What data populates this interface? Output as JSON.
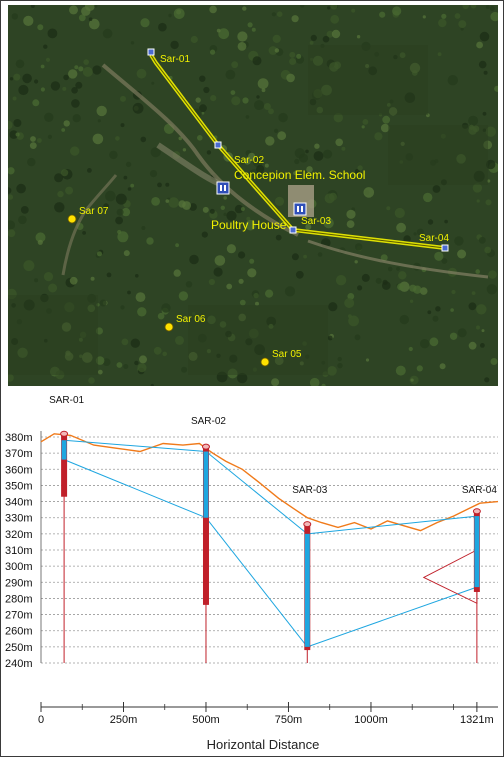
{
  "map": {
    "markers": [
      {
        "label": "Sar-01",
        "type": "route"
      },
      {
        "label": "Sar-02",
        "type": "route"
      },
      {
        "label": "Sar-03",
        "type": "route"
      },
      {
        "label": "Sar-04",
        "type": "route"
      },
      {
        "label": "Sar 07",
        "type": "point"
      },
      {
        "label": "Sar 06",
        "type": "point"
      },
      {
        "label": "Sar 05",
        "type": "point"
      }
    ],
    "places": [
      {
        "label": "Concepion Elem. School",
        "icon": "school-icon"
      },
      {
        "label": "Poultry House",
        "icon": "building-icon"
      }
    ],
    "colors": {
      "route": "#f2f200",
      "label": "#f2f200",
      "marker": "#ffe100"
    }
  },
  "profile": {
    "stations": [
      {
        "label": "SAR-01",
        "distance_m": 70,
        "top_m": 382,
        "red_bottom_m": 343,
        "blue_top_m": 378,
        "blue_bottom_m": 366
      },
      {
        "label": "SAR-02",
        "distance_m": 500,
        "top_m": 374,
        "red_bottom_m": 276,
        "blue_top_m": 371,
        "blue_bottom_m": 330
      },
      {
        "label": "SAR-03",
        "distance_m": 807,
        "top_m": 326,
        "red_bottom_m": 248,
        "blue_top_m": 320,
        "blue_bottom_m": 250
      },
      {
        "label": "SAR-04",
        "distance_m": 1321,
        "top_m": 334,
        "red_bottom_m": 284,
        "blue_top_m": 331,
        "blue_bottom_m": 287
      }
    ],
    "y_ticks": [
      "380m",
      "370m",
      "360m",
      "350m",
      "340m",
      "330m",
      "320m",
      "310m",
      "300m",
      "290m",
      "280m",
      "270m",
      "260m",
      "250m",
      "240m"
    ],
    "x_ticks": [
      "0",
      "250m",
      "500m",
      "750m",
      "1000m",
      "1321m"
    ],
    "x_label": "Horizontal Distance",
    "colors": {
      "surface": "#f07a1a",
      "layer": "#1ea6e0",
      "borehole": "#c0202a",
      "grid": "#9a9a9a"
    }
  },
  "chart_data": {
    "type": "line",
    "xlabel": "Horizontal Distance",
    "ylabel": "",
    "ylim": [
      240,
      383
    ],
    "xlim": [
      0,
      1385
    ],
    "series": [
      {
        "values": [
          [
            0,
            377
          ],
          [
            40,
            382
          ],
          [
            90,
            381
          ],
          [
            160,
            375
          ],
          [
            230,
            373
          ],
          [
            300,
            371
          ],
          [
            370,
            376
          ],
          [
            430,
            375
          ],
          [
            480,
            376
          ],
          [
            520,
            370
          ],
          [
            560,
            365
          ],
          [
            610,
            360
          ],
          [
            660,
            352
          ],
          [
            720,
            342
          ],
          [
            770,
            335
          ],
          [
            807,
            330
          ],
          [
            850,
            327
          ],
          [
            900,
            324
          ],
          [
            950,
            327
          ],
          [
            1000,
            323
          ],
          [
            1050,
            328
          ],
          [
            1100,
            325
          ],
          [
            1150,
            322
          ],
          [
            1200,
            327
          ],
          [
            1250,
            331
          ],
          [
            1300,
            336
          ],
          [
            1330,
            339
          ],
          [
            1385,
            340
          ]
        ]
      }
    ]
  }
}
